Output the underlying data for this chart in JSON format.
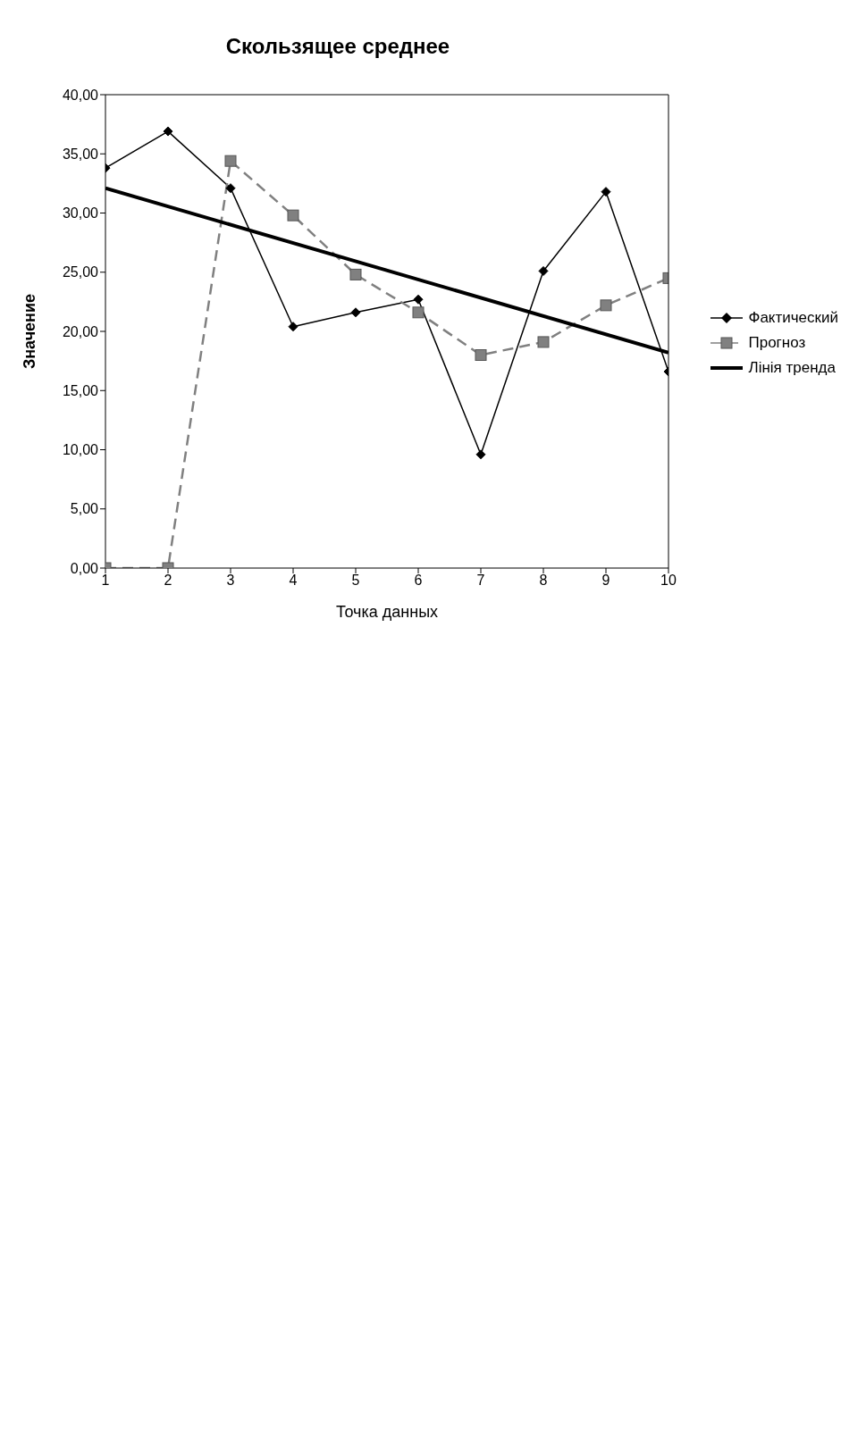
{
  "chart_data": {
    "type": "line",
    "title": "Скользящее среднее",
    "xlabel": "Точка данных",
    "ylabel": "Значение",
    "xlim": [
      1,
      10
    ],
    "xticks": [
      1,
      2,
      3,
      4,
      5,
      6,
      7,
      8,
      9,
      10
    ],
    "ylim": [
      0,
      40
    ],
    "yticks": [
      {
        "value": 0,
        "label": "0,00"
      },
      {
        "value": 5,
        "label": "5,00"
      },
      {
        "value": 10,
        "label": "10,00"
      },
      {
        "value": 15,
        "label": "15,00"
      },
      {
        "value": 20,
        "label": "20,00"
      },
      {
        "value": 25,
        "label": "25,00"
      },
      {
        "value": 30,
        "label": "30,00"
      },
      {
        "value": 35,
        "label": "35,00"
      },
      {
        "value": 40,
        "label": "40,00"
      }
    ],
    "grid": false,
    "legend": "right",
    "series": [
      {
        "name": "Фактический",
        "color": "#000000",
        "marker": "diamond",
        "line_style": "solid",
        "x": [
          1,
          2,
          3,
          4,
          5,
          6,
          7,
          8,
          9,
          10
        ],
        "values": [
          33.8,
          36.9,
          32.1,
          20.4,
          21.6,
          22.7,
          9.6,
          25.1,
          31.8,
          16.6
        ]
      },
      {
        "name": "Прогноз",
        "color": "#808080",
        "marker": "square",
        "line_style": "dashed",
        "x": [
          1,
          2,
          3,
          4,
          5,
          6,
          7,
          8,
          9,
          10
        ],
        "values": [
          0,
          0,
          34.4,
          29.8,
          24.8,
          21.6,
          18.0,
          19.1,
          22.2,
          24.5
        ]
      },
      {
        "name": "Лінія тренда",
        "color": "#000000",
        "marker": "none",
        "line_style": "solid",
        "x": [
          1,
          10
        ],
        "values": [
          32.1,
          18.2
        ]
      }
    ]
  }
}
